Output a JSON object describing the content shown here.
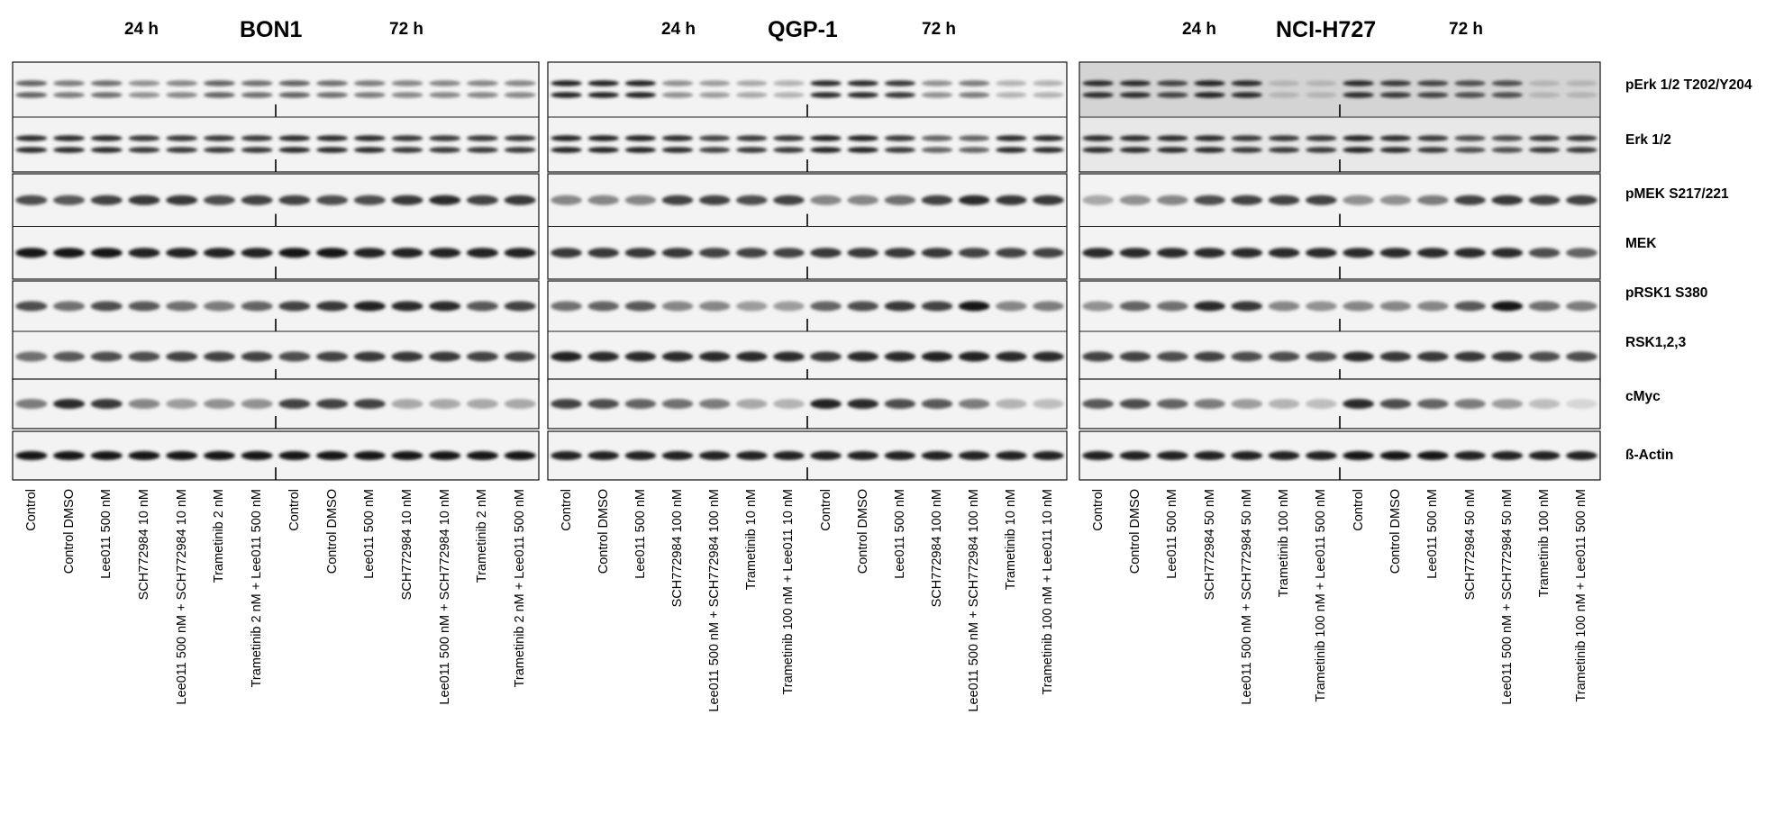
{
  "panels": [
    {
      "cell_line": "BON1",
      "time_left": "24 h",
      "time_right": "72 h",
      "lanes": [
        "Control",
        "Control DMSO",
        "Lee011 500 nM",
        "SCH772984 10 nM",
        "Lee011 500 nM + SCH772984 10 nM",
        "Trametinib 2 nM",
        "Trametinib 2 nM + Lee011 500 nM",
        "Control",
        "Control DMSO",
        "Lee011 500 nM",
        "SCH772984 10 nM",
        "Lee011 500 nM + SCH772984 10 nM",
        "Trametinib 2 nM",
        "Trametinib 2 nM + Lee011 500 nM"
      ]
    },
    {
      "cell_line": "QGP-1",
      "time_left": "24 h",
      "time_right": "72 h",
      "lanes": [
        "Control",
        "Control DMSO",
        "Lee011 500 nM",
        "SCH772984 100 nM",
        "Lee011 500 nM + SCH772984 100 nM",
        "Trametinib 10 nM",
        "Trametinib 100 nM + Lee011 10 nM",
        "Control",
        "Control DMSO",
        "Lee011 500 nM",
        "SCH772984 100 nM",
        "Lee011 500 nM + SCH772984 100 nM",
        "Trametinib 10 nM",
        "Trametinib 100 nM + Lee011 10 nM"
      ]
    },
    {
      "cell_line": "NCI-H727",
      "time_left": "24 h",
      "time_right": "72 h",
      "lanes": [
        "Control",
        "Control DMSO",
        "Lee011 500 nM",
        "SCH772984 50 nM",
        "Lee011 500 nM + SCH772984 50 nM",
        "Trametinib 100 nM",
        "Trametinib 100 nM + Lee011 500 nM",
        "Control",
        "Control DMSO",
        "Lee011 500 nM",
        "SCH772984 50 nM",
        "Lee011 500 nM + SCH772984 50 nM",
        "Trametinib 100 nM",
        "Trametinib 100 nM + Lee011 500 nM"
      ]
    }
  ],
  "proteins": [
    "pErk 1/2 T202/Y204",
    "Erk 1/2",
    "pMEK S217/221",
    "MEK",
    "pRSK1 S380",
    "RSK1,2,3",
    "cMyc",
    "ß-Actin"
  ],
  "band_intensity": {
    "BON1": {
      "pErk": [
        0.6,
        0.5,
        0.55,
        0.4,
        0.45,
        0.6,
        0.55,
        0.6,
        0.55,
        0.5,
        0.45,
        0.45,
        0.45,
        0.45
      ],
      "Erk": [
        0.85,
        0.85,
        0.85,
        0.8,
        0.8,
        0.8,
        0.8,
        0.85,
        0.85,
        0.85,
        0.8,
        0.8,
        0.8,
        0.8
      ],
      "pMEK": [
        0.7,
        0.65,
        0.75,
        0.8,
        0.8,
        0.7,
        0.75,
        0.75,
        0.7,
        0.7,
        0.8,
        0.85,
        0.75,
        0.8
      ],
      "MEK": [
        0.95,
        0.95,
        0.95,
        0.9,
        0.9,
        0.9,
        0.9,
        0.95,
        0.95,
        0.9,
        0.9,
        0.9,
        0.9,
        0.9
      ],
      "pRSK1": [
        0.7,
        0.55,
        0.7,
        0.65,
        0.55,
        0.5,
        0.6,
        0.75,
        0.8,
        0.9,
        0.85,
        0.85,
        0.65,
        0.75
      ],
      "RSK": [
        0.55,
        0.65,
        0.7,
        0.7,
        0.75,
        0.75,
        0.75,
        0.7,
        0.75,
        0.8,
        0.8,
        0.8,
        0.75,
        0.75
      ],
      "cMyc": [
        0.5,
        0.85,
        0.8,
        0.45,
        0.35,
        0.4,
        0.4,
        0.75,
        0.75,
        0.75,
        0.3,
        0.3,
        0.3,
        0.3
      ],
      "Actin": [
        0.95,
        0.95,
        0.95,
        0.95,
        0.95,
        0.95,
        0.95,
        0.95,
        0.95,
        0.95,
        0.95,
        0.95,
        0.95,
        0.95
      ]
    },
    "QGP-1": {
      "pErk": [
        0.9,
        0.9,
        0.9,
        0.4,
        0.35,
        0.3,
        0.25,
        0.85,
        0.85,
        0.8,
        0.4,
        0.5,
        0.25,
        0.25
      ],
      "Erk": [
        0.9,
        0.9,
        0.9,
        0.85,
        0.75,
        0.8,
        0.8,
        0.9,
        0.9,
        0.8,
        0.6,
        0.6,
        0.85,
        0.85
      ],
      "pMEK": [
        0.45,
        0.45,
        0.45,
        0.75,
        0.75,
        0.7,
        0.75,
        0.45,
        0.45,
        0.55,
        0.75,
        0.85,
        0.8,
        0.8
      ],
      "MEK": [
        0.8,
        0.8,
        0.8,
        0.8,
        0.75,
        0.75,
        0.75,
        0.8,
        0.8,
        0.8,
        0.8,
        0.75,
        0.75,
        0.75
      ],
      "pRSK1": [
        0.55,
        0.6,
        0.65,
        0.45,
        0.45,
        0.35,
        0.35,
        0.6,
        0.7,
        0.8,
        0.75,
        0.95,
        0.45,
        0.5
      ],
      "RSK": [
        0.9,
        0.85,
        0.85,
        0.85,
        0.85,
        0.85,
        0.85,
        0.8,
        0.85,
        0.85,
        0.9,
        0.9,
        0.85,
        0.85
      ],
      "cMyc": [
        0.75,
        0.7,
        0.6,
        0.55,
        0.5,
        0.3,
        0.25,
        0.9,
        0.85,
        0.7,
        0.65,
        0.5,
        0.25,
        0.2
      ],
      "Actin": [
        0.9,
        0.9,
        0.9,
        0.9,
        0.9,
        0.9,
        0.9,
        0.9,
        0.9,
        0.9,
        0.9,
        0.9,
        0.9,
        0.9
      ]
    },
    "NCI-H727": {
      "pErk": [
        0.85,
        0.85,
        0.75,
        0.9,
        0.85,
        0.25,
        0.25,
        0.85,
        0.8,
        0.75,
        0.7,
        0.7,
        0.25,
        0.25
      ],
      "Erk": [
        0.85,
        0.85,
        0.85,
        0.85,
        0.8,
        0.8,
        0.8,
        0.9,
        0.85,
        0.8,
        0.7,
        0.7,
        0.8,
        0.8
      ],
      "pMEK": [
        0.3,
        0.4,
        0.45,
        0.7,
        0.75,
        0.75,
        0.75,
        0.4,
        0.4,
        0.5,
        0.75,
        0.8,
        0.75,
        0.75
      ],
      "MEK": [
        0.85,
        0.85,
        0.85,
        0.85,
        0.85,
        0.85,
        0.85,
        0.85,
        0.85,
        0.85,
        0.85,
        0.85,
        0.7,
        0.6
      ],
      "pRSK1": [
        0.4,
        0.6,
        0.55,
        0.85,
        0.8,
        0.45,
        0.4,
        0.45,
        0.45,
        0.45,
        0.65,
        0.95,
        0.55,
        0.5
      ],
      "RSK": [
        0.75,
        0.75,
        0.7,
        0.75,
        0.7,
        0.7,
        0.7,
        0.85,
        0.8,
        0.8,
        0.8,
        0.8,
        0.7,
        0.7
      ],
      "cMyc": [
        0.65,
        0.7,
        0.6,
        0.5,
        0.35,
        0.25,
        0.2,
        0.85,
        0.7,
        0.6,
        0.5,
        0.35,
        0.2,
        0.1
      ],
      "Actin": [
        0.9,
        0.9,
        0.9,
        0.9,
        0.9,
        0.9,
        0.9,
        0.95,
        0.95,
        0.95,
        0.9,
        0.9,
        0.9,
        0.9
      ]
    }
  }
}
